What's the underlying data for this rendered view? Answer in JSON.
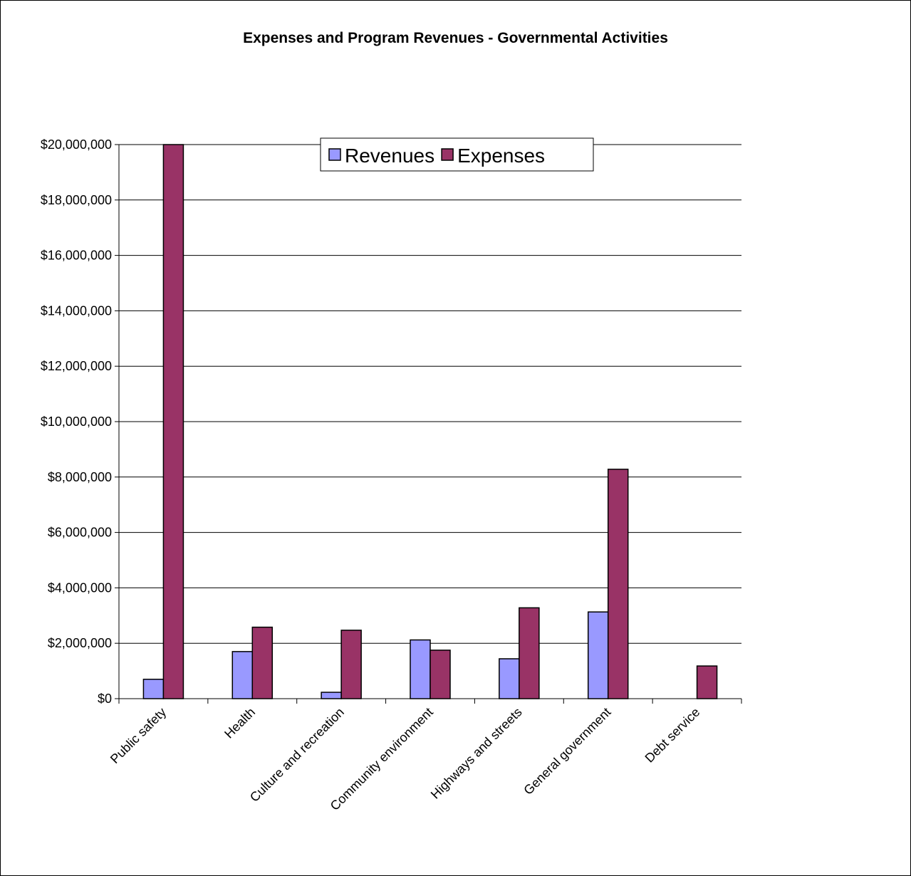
{
  "chart_data": {
    "type": "bar",
    "title": "Expenses and Program Revenues - Governmental Activities",
    "xlabel": "",
    "ylabel": "",
    "categories": [
      "Public safety",
      "Health",
      "Culture and recreation",
      "Community environment",
      "Highways and streets",
      "General government",
      "Debt service"
    ],
    "series": [
      {
        "name": "Revenues",
        "color": "#9999ff",
        "values": [
          700000,
          1700000,
          230000,
          2120000,
          1440000,
          3130000,
          0
        ]
      },
      {
        "name": "Expenses",
        "color": "#993366",
        "values": [
          20150000,
          2580000,
          2470000,
          1750000,
          3280000,
          8280000,
          1180000
        ]
      }
    ],
    "ylim": [
      0,
      20000000
    ],
    "yticks": [
      "$0",
      "$2,000,000",
      "$4,000,000",
      "$6,000,000",
      "$8,000,000",
      "$10,000,000",
      "$12,000,000",
      "$14,000,000",
      "$16,000,000",
      "$18,000,000",
      "$20,000,000"
    ],
    "grid": true,
    "legend_position": "top-center"
  }
}
